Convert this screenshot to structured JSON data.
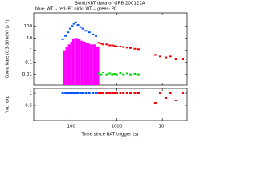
{
  "chart_data": [
    {
      "type": "scatter",
      "title": "Swift/XRT data of GRB 200122A",
      "subtitle": "blue: WT -- red: PC   pink: WT -- green: PC",
      "y_label": "Count Rate (0.3-10 keV) (s⁻¹)",
      "log_x": true,
      "log_y": true,
      "xlim": [
        15,
        35000
      ],
      "ylim": [
        0.0013,
        1200
      ],
      "yticks": [
        0.01,
        0.1,
        1,
        10,
        100
      ],
      "series": [
        {
          "name": "WT bg",
          "color": "#ff00ff",
          "style": "bars",
          "x": [
            65,
            75,
            85,
            95,
            105,
            115,
            125,
            140,
            160,
            180,
            210,
            250,
            300,
            350
          ],
          "values": [
            1,
            2,
            3,
            5,
            8,
            10,
            10,
            8,
            6,
            5,
            4,
            3,
            3,
            2
          ]
        },
        {
          "name": "PC bg",
          "color": "#00dd00",
          "style": "points",
          "x": [
            400,
            450,
            500,
            600,
            700,
            800,
            900,
            1000,
            1200,
            1400,
            1700,
            2000,
            2500,
            3000
          ],
          "values": [
            0.012,
            0.01,
            0.015,
            0.01,
            0.012,
            0.01,
            0.011,
            0.01,
            0.013,
            0.01,
            0.012,
            0.01,
            0.011,
            0.01
          ]
        },
        {
          "name": "WT",
          "color": "#0055ff",
          "style": "points",
          "x": [
            65,
            75,
            85,
            95,
            105,
            115,
            125,
            140,
            160,
            180,
            210,
            250,
            300,
            350
          ],
          "values": [
            8,
            15,
            30,
            60,
            100,
            150,
            200,
            120,
            80,
            60,
            40,
            30,
            20,
            15
          ]
        },
        {
          "name": "PC",
          "color": "#ee0000",
          "style": "points",
          "x": [
            400,
            450,
            500,
            600,
            700,
            800,
            900,
            1000,
            1200,
            1400,
            1700,
            2000,
            2500,
            3000,
            7000,
            9000,
            12000,
            15000,
            20000,
            28000
          ],
          "values": [
            4,
            3.5,
            3,
            3,
            2.5,
            2.5,
            2.2,
            2,
            2,
            1.8,
            1.6,
            1.5,
            1.3,
            1.2,
            0.4,
            0.3,
            0.25,
            0.3,
            0.2,
            0.2
          ]
        }
      ]
    },
    {
      "type": "scatter",
      "y_label": "frac. exp",
      "x_label": "Time since BAT trigger (s)",
      "log_x": true,
      "log_y": false,
      "xlim": [
        15,
        35000
      ],
      "ylim": [
        -0.13,
        1.2
      ],
      "xticks": [
        100,
        1000,
        {
          "value": 10000,
          "label": "10⁴"
        }
      ],
      "yticks": [
        0.5,
        1
      ],
      "series": [
        {
          "name": "WT",
          "color": "#0055ff",
          "style": "points",
          "x": [
            65,
            75,
            85,
            95,
            105,
            115,
            125,
            140,
            160,
            180,
            210,
            250,
            300,
            350
          ],
          "values": [
            1,
            1,
            1,
            1,
            1,
            1,
            1,
            1,
            1,
            1,
            1,
            1,
            1,
            1
          ]
        },
        {
          "name": "PC",
          "color": "#ee0000",
          "style": "points",
          "x": [
            400,
            450,
            500,
            600,
            700,
            800,
            900,
            1000,
            1200,
            1400,
            1700,
            2000,
            2500,
            3000,
            7000,
            9000,
            12000,
            15000,
            20000,
            28000
          ],
          "values": [
            1,
            1,
            1,
            1,
            1,
            1,
            1,
            1,
            1,
            1,
            1,
            1,
            1,
            1,
            0.6,
            1,
            0.8,
            1,
            0.7,
            1
          ]
        }
      ]
    }
  ]
}
